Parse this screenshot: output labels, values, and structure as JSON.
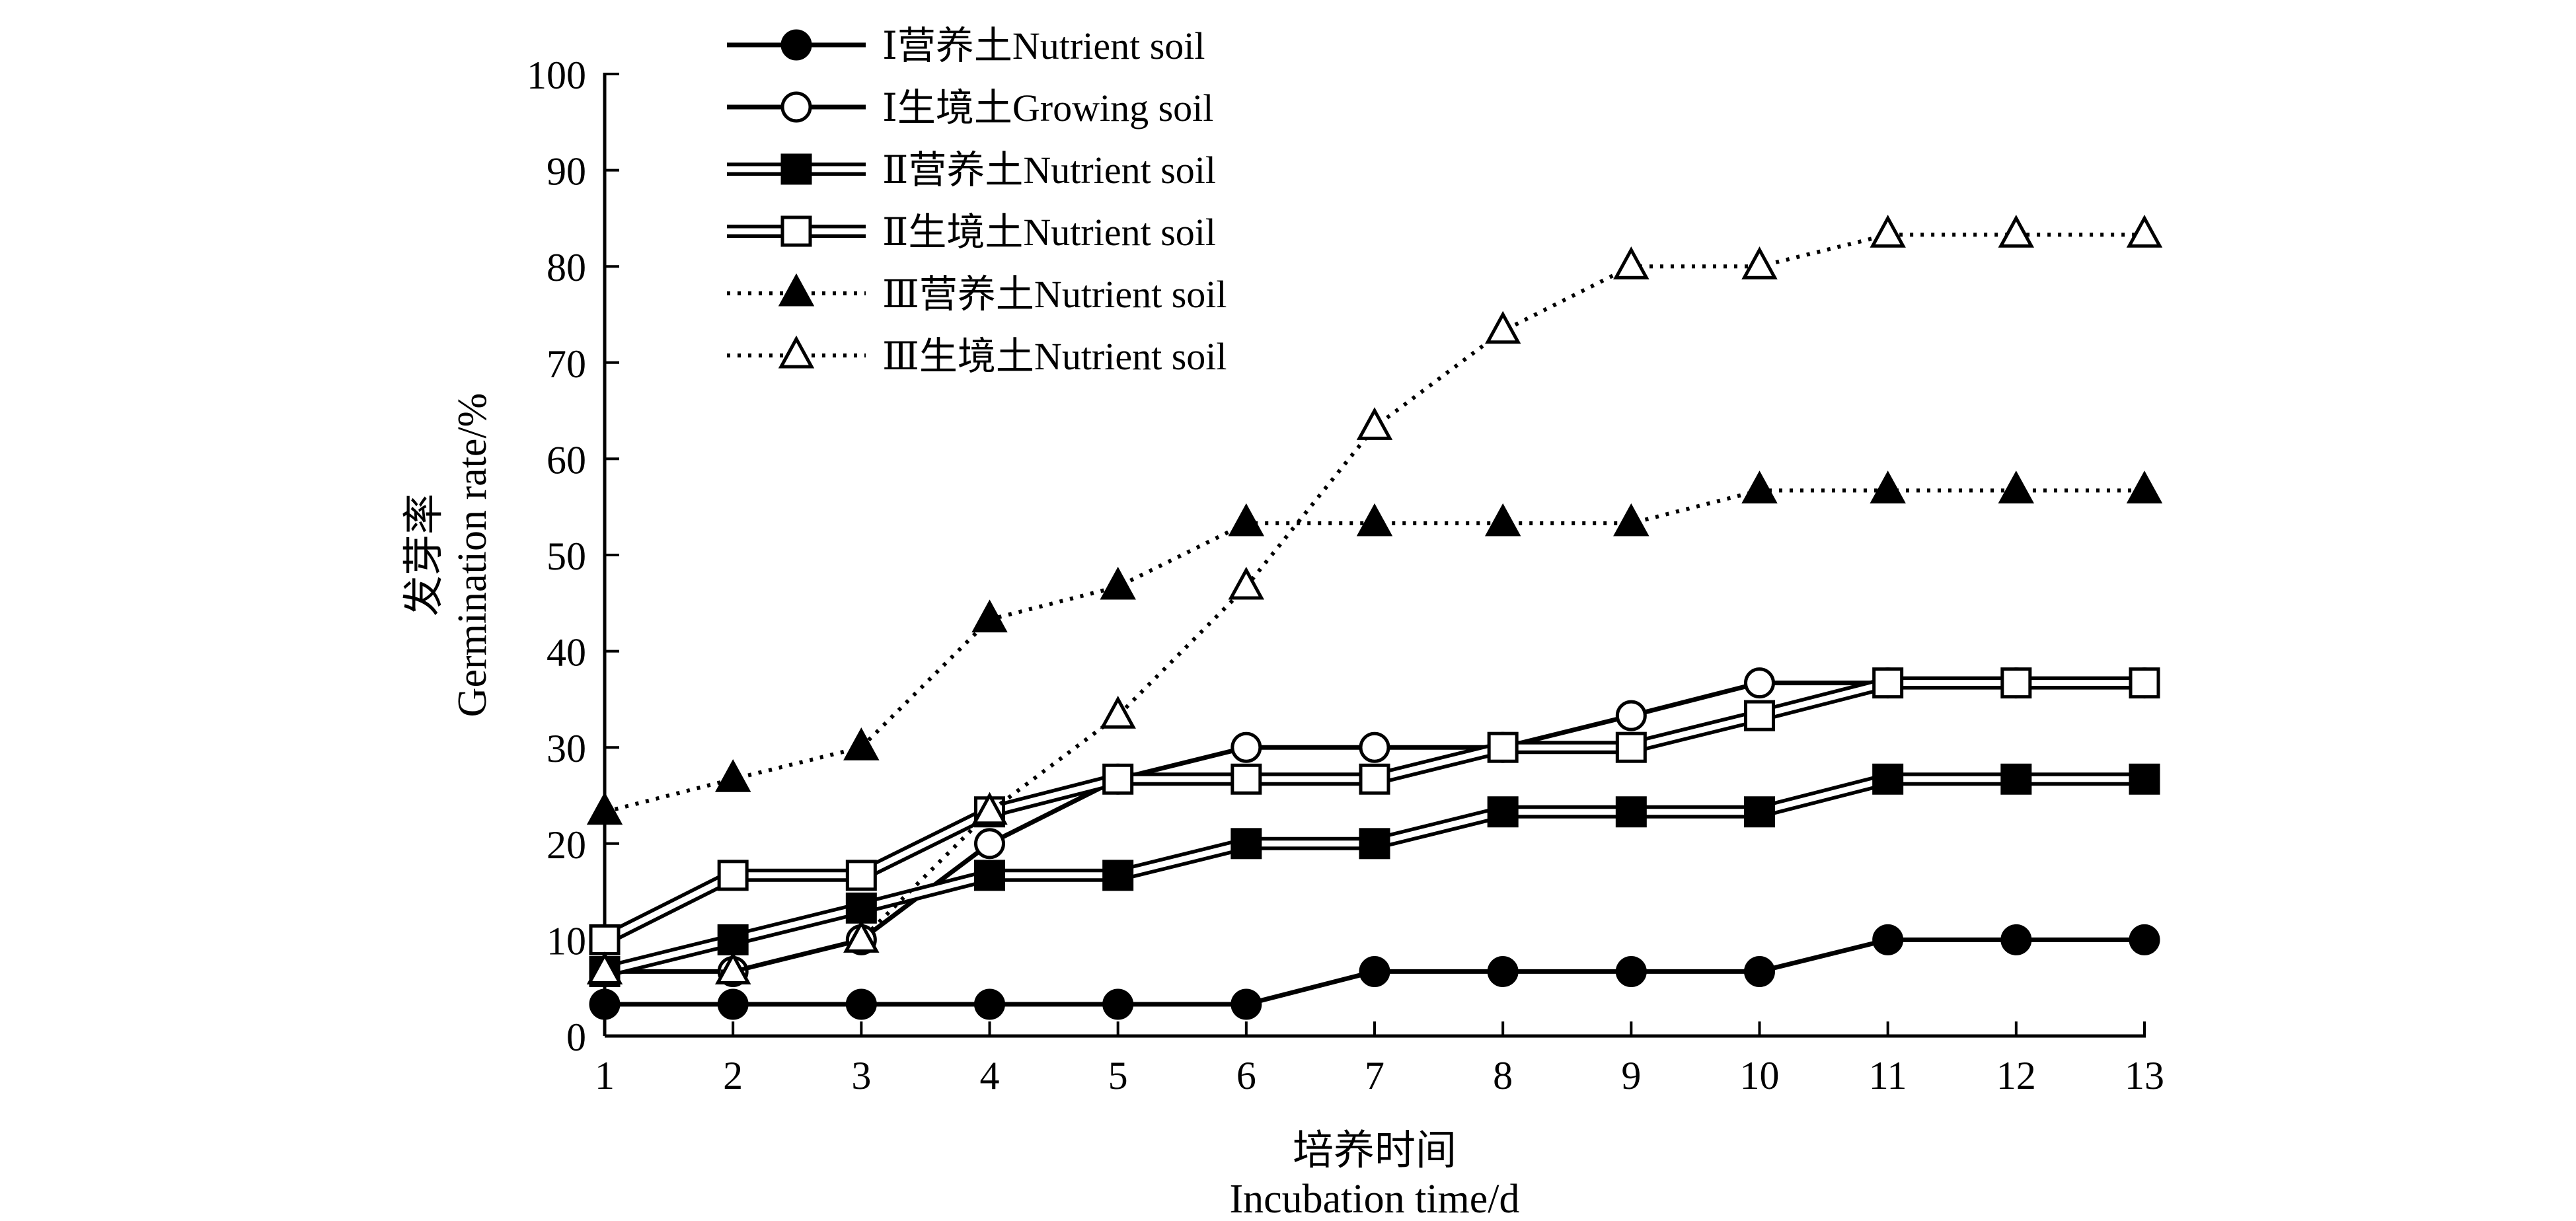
{
  "chart_data": {
    "type": "line",
    "title": "",
    "xlabel": [
      "培养时间",
      "Incubation time/d"
    ],
    "ylabel": [
      "发芽率",
      "Germination rate/%"
    ],
    "x": [
      1,
      2,
      3,
      4,
      5,
      6,
      7,
      8,
      9,
      10,
      11,
      12,
      13
    ],
    "xlim": [
      1,
      13
    ],
    "ylim": [
      0,
      100
    ],
    "yticks": [
      0,
      10,
      20,
      30,
      40,
      50,
      60,
      70,
      80,
      90,
      100
    ],
    "grid": false,
    "legend_position": "top-left",
    "series": [
      {
        "name": "Ⅰ营养土Nutrient soil",
        "line": "solid",
        "marker": "circle",
        "filled": true,
        "values": [
          3.3,
          3.3,
          3.3,
          3.3,
          3.3,
          3.3,
          6.7,
          6.7,
          6.7,
          6.7,
          10,
          10,
          10
        ]
      },
      {
        "name": "Ⅰ生境土Growing soil",
        "line": "solid",
        "marker": "circle",
        "filled": false,
        "values": [
          6.7,
          6.7,
          10,
          20,
          26.7,
          30,
          30,
          30,
          33.3,
          36.7,
          36.7,
          36.7,
          36.7
        ]
      },
      {
        "name": "Ⅱ营养土Nutrient soil",
        "line": "double",
        "marker": "square",
        "filled": true,
        "values": [
          6.7,
          10,
          13.3,
          16.7,
          16.7,
          20,
          20,
          23.3,
          23.3,
          23.3,
          26.7,
          26.7,
          26.7
        ]
      },
      {
        "name": "Ⅱ生境土Nutrient soil",
        "line": "double",
        "marker": "square",
        "filled": false,
        "values": [
          10,
          16.7,
          16.7,
          23.3,
          26.7,
          26.7,
          26.7,
          30,
          30,
          33.3,
          36.7,
          36.7,
          36.7
        ]
      },
      {
        "name": "Ⅲ营养土Nutrient soil",
        "line": "dotted",
        "marker": "triangle",
        "filled": true,
        "values": [
          23.3,
          26.7,
          30,
          43.3,
          46.7,
          53.3,
          53.3,
          53.3,
          53.3,
          56.7,
          56.7,
          56.7,
          56.7
        ]
      },
      {
        "name": "Ⅲ生境土Nutrient soil",
        "line": "dotted",
        "marker": "triangle",
        "filled": false,
        "values": [
          6.7,
          6.7,
          10,
          23.3,
          33.3,
          46.7,
          63.3,
          73.3,
          80,
          80,
          83.3,
          83.3,
          83.3
        ]
      }
    ]
  }
}
